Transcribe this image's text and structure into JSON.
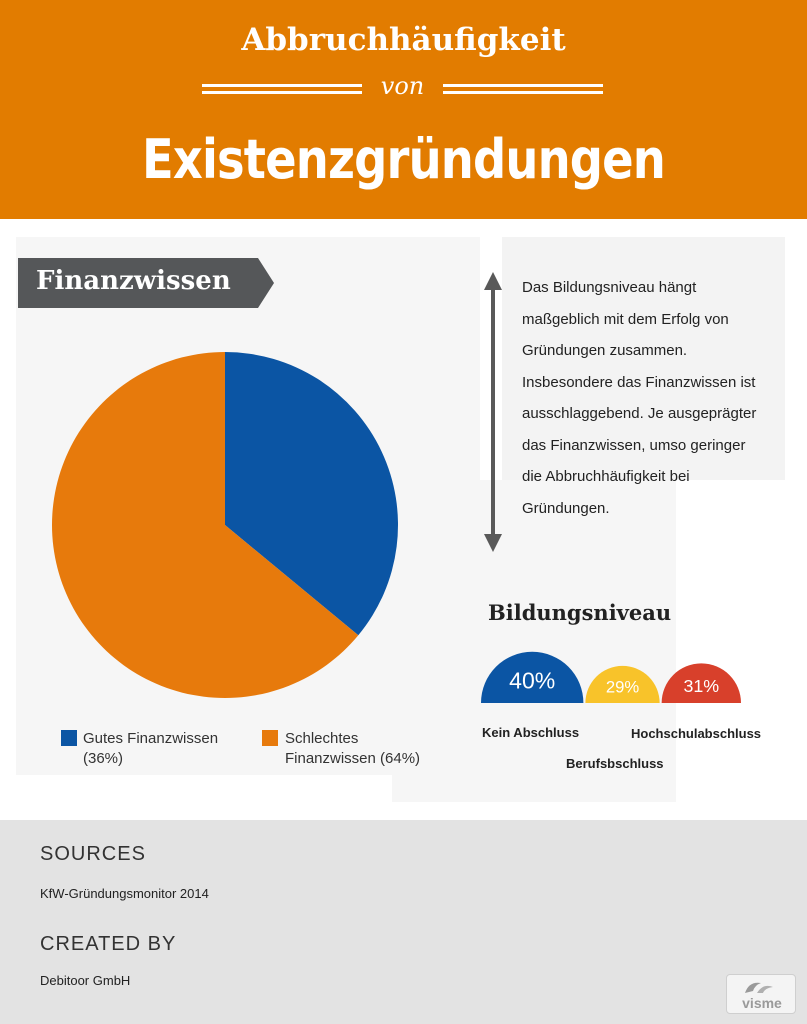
{
  "header": {
    "line1": "Abbruchhäufigkeit",
    "von": "von",
    "line2": "Existenzgründungen"
  },
  "finanz": {
    "label": "Finanzwissen"
  },
  "description": "Das Bildungsniveau hängt maßgeblich mit dem Erfolg von Gründungen zusammen. Insbesondere das Finanzwissen ist ausschlaggebend. Je ausgeprägter das Finanzwissen, umso geringer die Abbruchhäufigkeit bei Gründungen.",
  "bildung": {
    "title": "Bildungsniveau",
    "labels": {
      "kein": "Kein Abschluss",
      "beruf": "Berufsbschluss",
      "hochschule": "Hochschulabschluss"
    }
  },
  "footer": {
    "sources_heading": "SOURCES",
    "sources_text": "KfW-Gründungsmonitor 2014",
    "created_heading": "CREATED  BY",
    "created_text": "Debitoor GmbH",
    "logo_text": "visme"
  },
  "colors": {
    "orange": "#e77a0c",
    "blue": "#0b55a4",
    "yellow": "#f8c32a",
    "red": "#d8402b",
    "header": "#e27c00"
  },
  "chart_data": [
    {
      "type": "pie",
      "title": "Finanzwissen",
      "series": [
        {
          "name": "Gutes Finanzwissen",
          "legend": "Gutes Finanzwissen (36%)",
          "value": 36,
          "color": "#0b55a4"
        },
        {
          "name": "Schlechtes Finanzwissen",
          "legend": "Schlechtes Finanzwissen (64%)",
          "value": 64,
          "color": "#e77a0c"
        }
      ],
      "legend_position": "bottom"
    },
    {
      "type": "pie",
      "title": "Bildungsniveau",
      "series": [
        {
          "name": "Kein Abschluss",
          "value": 40,
          "label": "40%",
          "color": "#0b55a4"
        },
        {
          "name": "Berufsbschluss",
          "value": 29,
          "label": "29%",
          "color": "#f8c32a"
        },
        {
          "name": "Hochschulabschluss",
          "value": 31,
          "label": "31%",
          "color": "#d8402b"
        }
      ]
    }
  ]
}
